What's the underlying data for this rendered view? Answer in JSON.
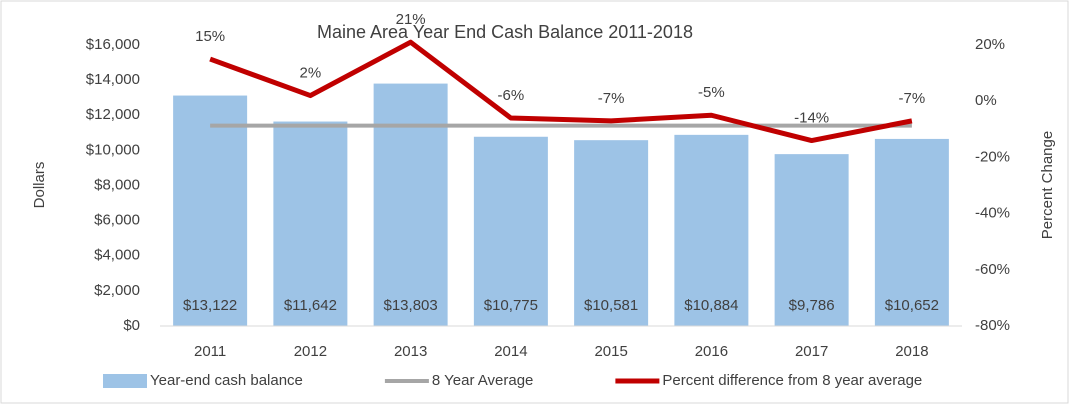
{
  "chart_data": {
    "type": "bar_line",
    "title": "Maine Area Year End Cash Balance 2011-2018",
    "y_label": "Dollars",
    "y2_label": "Percent Change",
    "categories": [
      "2011",
      "2012",
      "2013",
      "2014",
      "2015",
      "2016",
      "2017",
      "2018"
    ],
    "series": [
      {
        "name": "Year-end cash balance",
        "type": "bar",
        "color": "#9dc3e6",
        "axis": "y",
        "values": [
          13122,
          11642,
          13803,
          10775,
          10581,
          10884,
          9786,
          10652
        ],
        "value_labels": [
          "$13,122",
          "$11,642",
          "$13,803",
          "$10,775",
          "$10,581",
          "$10,884",
          "$9,786",
          "$10,652"
        ]
      },
      {
        "name": "8 Year Average",
        "type": "line",
        "color": "#a6a6a6",
        "axis": "y",
        "values": [
          11406,
          11406,
          11406,
          11406,
          11406,
          11406,
          11406,
          11406
        ]
      },
      {
        "name": "Percent difference from 8 year average",
        "type": "line",
        "color": "#c00000",
        "axis": "y2",
        "values": [
          15,
          2,
          21,
          -6,
          -7,
          -5,
          -14,
          -7
        ],
        "value_labels": [
          "15%",
          "2%",
          "21%",
          "-6%",
          "-7%",
          "-5%",
          "-14%",
          "-7%"
        ]
      }
    ],
    "ylim": [
      0,
      16000
    ],
    "yticks": [
      {
        "value": 0,
        "label": "$0"
      },
      {
        "value": 2000,
        "label": "$2,000"
      },
      {
        "value": 4000,
        "label": "$4,000"
      },
      {
        "value": 6000,
        "label": "$6,000"
      },
      {
        "value": 8000,
        "label": "$8,000"
      },
      {
        "value": 10000,
        "label": "$10,000"
      },
      {
        "value": 12000,
        "label": "$12,000"
      },
      {
        "value": 14000,
        "label": "$14,000"
      },
      {
        "value": 16000,
        "label": "$16,000"
      }
    ],
    "y2lim": [
      -80,
      20
    ],
    "y2ticks": [
      {
        "value": -80,
        "label": "-80%"
      },
      {
        "value": -60,
        "label": "-60%"
      },
      {
        "value": -40,
        "label": "-40%"
      },
      {
        "value": -20,
        "label": "-20%"
      },
      {
        "value": 0,
        "label": "0%"
      },
      {
        "value": 20,
        "label": "20%"
      }
    ],
    "legend": "bottom"
  }
}
